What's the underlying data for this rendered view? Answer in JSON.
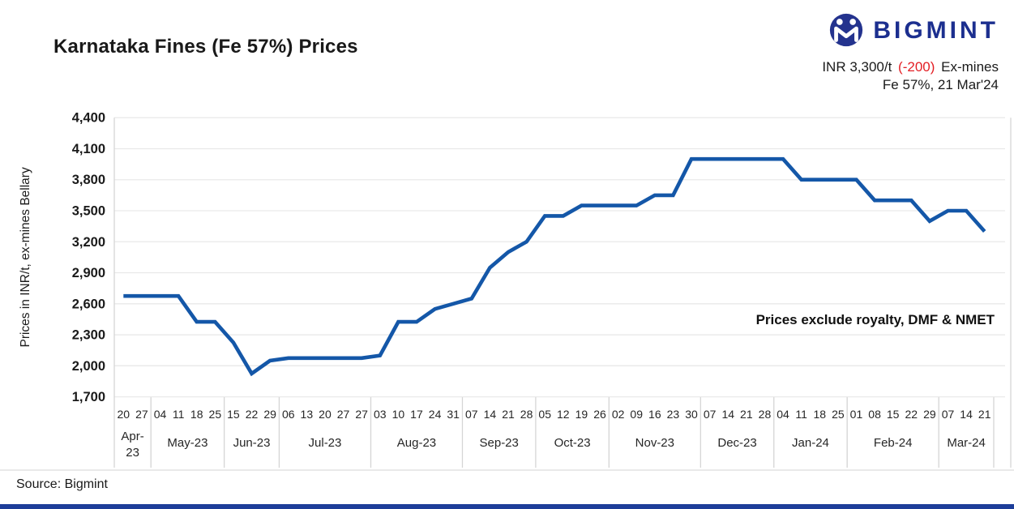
{
  "header": {
    "title": "Karnataka Fines (Fe 57%) Prices",
    "brand": "BIGMINT",
    "price_prefix": "INR 3,300/t",
    "price_change": "(-200)",
    "price_suffix": "Ex-mines",
    "price_detail": "Fe 57%, 21 Mar'24"
  },
  "footer": {
    "source": "Source: Bigmint"
  },
  "colors": {
    "line": "#1457a8",
    "brand_navy": "#1c2f8f",
    "change_red": "#e31e24",
    "grid": "#e9e9e9",
    "axis": "#d5d5d5",
    "bottom_bar": "#1d3d99",
    "text": "#1a1a1a"
  },
  "chart_data": {
    "type": "line",
    "title": "Karnataka Fines (Fe 57%) Prices",
    "ylabel": "Prices in INR/t, ex-mines Bellary",
    "xlabel": "",
    "ylim": [
      1700,
      4400
    ],
    "ytick_step": 300,
    "grid": "horizontal",
    "legend_position": "none",
    "annotation": "Prices exclude royalty, DMF & NMET",
    "months": [
      {
        "label": "Apr-23",
        "days": [
          "20",
          "27"
        ]
      },
      {
        "label": "May-23",
        "days": [
          "04",
          "11",
          "18",
          "25"
        ]
      },
      {
        "label": "Jun-23",
        "days": [
          "15",
          "22",
          "29"
        ]
      },
      {
        "label": "Jul-23",
        "days": [
          "06",
          "13",
          "20",
          "27",
          "27"
        ]
      },
      {
        "label": "Aug-23",
        "days": [
          "03",
          "10",
          "17",
          "24",
          "31"
        ]
      },
      {
        "label": "Sep-23",
        "days": [
          "07",
          "14",
          "21",
          "28"
        ]
      },
      {
        "label": "Oct-23",
        "days": [
          "05",
          "12",
          "19",
          "26"
        ]
      },
      {
        "label": "Nov-23",
        "days": [
          "02",
          "09",
          "16",
          "23",
          "30"
        ]
      },
      {
        "label": "Dec-23",
        "days": [
          "07",
          "14",
          "21",
          "28"
        ]
      },
      {
        "label": "Jan-24",
        "days": [
          "04",
          "11",
          "18",
          "25"
        ]
      },
      {
        "label": "Feb-24",
        "days": [
          "01",
          "08",
          "15",
          "22",
          "29"
        ]
      },
      {
        "label": "Mar-24",
        "days": [
          "07",
          "14",
          "21"
        ]
      }
    ],
    "values": [
      2675,
      2675,
      2675,
      2675,
      2425,
      2425,
      2225,
      1925,
      2050,
      2075,
      2075,
      2075,
      2075,
      2075,
      2100,
      2425,
      2425,
      2550,
      2600,
      2650,
      2950,
      3100,
      3200,
      3450,
      3450,
      3550,
      3550,
      3550,
      3550,
      3650,
      3650,
      4000,
      4000,
      4000,
      4000,
      4000,
      4000,
      3800,
      3800,
      3800,
      3800,
      3600,
      3600,
      3600,
      3400,
      3500,
      3500,
      3300
    ]
  }
}
